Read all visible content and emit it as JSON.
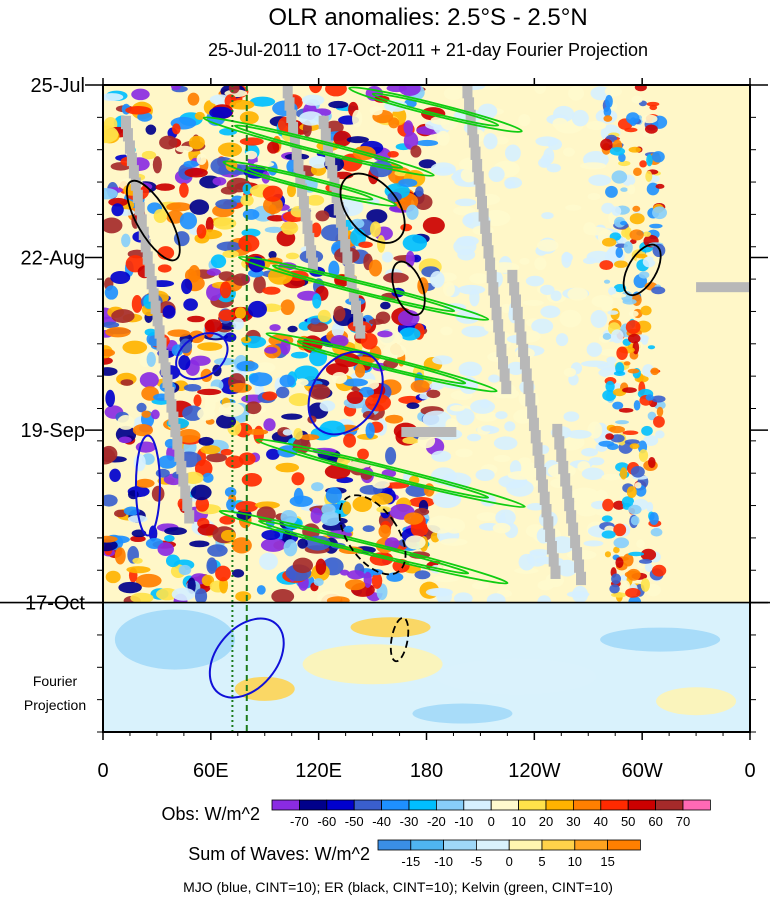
{
  "title": "OLR anomalies: 2.5°S - 2.5°N",
  "subtitle": "25-Jul-2011 to 17-Oct-2011 + 21-day Fourier Projection",
  "chart_data": {
    "type": "heatmap",
    "title": "OLR anomalies: 2.5°S - 2.5°N",
    "subtitle": "25-Jul-2011 to 17-Oct-2011 + 21-day Fourier Projection",
    "x_axis": {
      "ticks": [
        {
          "label": "0",
          "lon": 0
        },
        {
          "label": "60E",
          "lon": 60
        },
        {
          "label": "120E",
          "lon": 120
        },
        {
          "label": "180",
          "lon": 180
        },
        {
          "label": "120W",
          "lon": 240
        },
        {
          "label": "60W",
          "lon": 300
        },
        {
          "label": "0",
          "lon": 360
        }
      ],
      "range": [
        0,
        360
      ]
    },
    "y_axis": {
      "ticks": [
        {
          "label": "25-Jul",
          "day": 0
        },
        {
          "label": "22-Aug",
          "day": 28
        },
        {
          "label": "19-Sep",
          "day": 56
        },
        {
          "label": "17-Oct",
          "day": 84
        }
      ],
      "range": [
        0,
        105
      ],
      "forecast_start_day": 84,
      "forecast_label": "Fourier\nProjection"
    },
    "obs_colorbar": {
      "label": "Obs: W/m^2",
      "levels": [
        "-70",
        "-60",
        "-50",
        "-40",
        "-30",
        "-20",
        "-10",
        "0",
        "10",
        "20",
        "30",
        "40",
        "50",
        "60",
        "70"
      ],
      "colors": [
        "#8a2be2",
        "#00008b",
        "#0000cd",
        "#3a5fcd",
        "#1e90ff",
        "#00bfff",
        "#87cefa",
        "#d6f0ff",
        "#fffacd",
        "#ffe24a",
        "#ffb300",
        "#ff7f00",
        "#ff2a00",
        "#cc0000",
        "#a52a2a",
        "#ff69b4"
      ]
    },
    "waves_colorbar": {
      "label": "Sum of Waves: W/m^2",
      "levels": [
        "-15",
        "-10",
        "-5",
        "0",
        "5",
        "10",
        "15"
      ],
      "colors": [
        "#3a8ee6",
        "#4fb4f0",
        "#9fd8f8",
        "#d9f2fc",
        "#fff5b0",
        "#ffd24a",
        "#ffa21f",
        "#ff7f00"
      ]
    },
    "contours_note": "MJO (blue, CINT=10); ER (black, CINT=10); Kelvin (green, CINT=10)",
    "reference_lines": [
      {
        "type": "vertical",
        "lon": 72,
        "color": "#1a7a1a",
        "style": "dotted"
      },
      {
        "type": "vertical",
        "lon": 80,
        "color": "#1a7a1a",
        "style": "dashed"
      },
      {
        "type": "horizontal",
        "day": 84,
        "color": "#000000",
        "style": "solid"
      }
    ]
  }
}
